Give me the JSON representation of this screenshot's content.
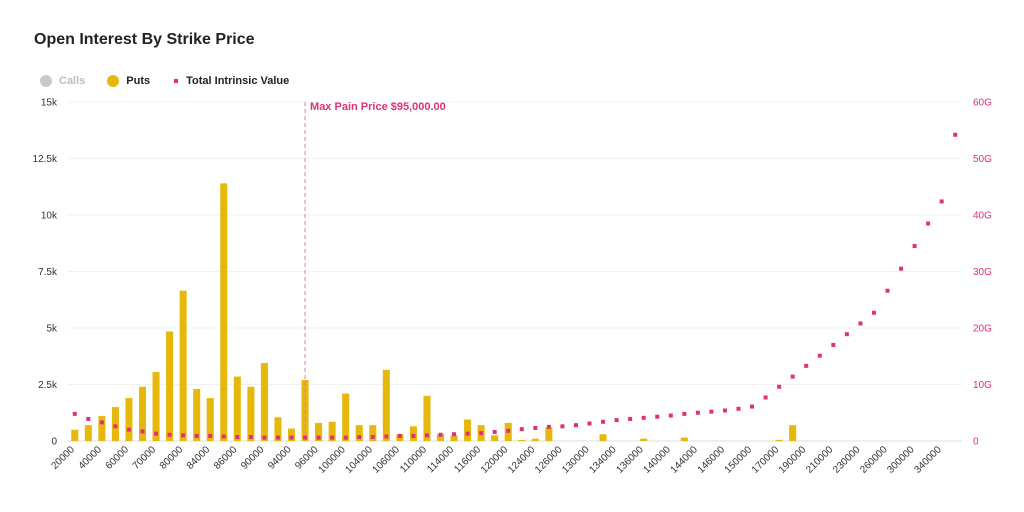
{
  "title": "Open Interest By Strike Price",
  "legend": {
    "calls": {
      "label": "Calls",
      "color": "#c9c9c9",
      "active": false
    },
    "puts": {
      "label": "Puts",
      "color": "#e5b80b",
      "active": true
    },
    "tiv": {
      "label": "Total Intrinsic Value",
      "color": "#e0307a",
      "active": true
    }
  },
  "max_pain": {
    "label": "Max Pain Price $95,000.00",
    "strike": "95000"
  },
  "chart_data": {
    "type": "bar",
    "categories": [
      "20000",
      "30000",
      "40000",
      "50000",
      "60000",
      "65000",
      "70000",
      "75000",
      "80000",
      "82000",
      "84000",
      "85000",
      "86000",
      "88000",
      "90000",
      "92000",
      "94000",
      "95000",
      "96000",
      "98000",
      "100000",
      "102000",
      "104000",
      "105000",
      "106000",
      "108000",
      "110000",
      "112000",
      "114000",
      "115000",
      "116000",
      "118000",
      "120000",
      "122000",
      "124000",
      "125000",
      "126000",
      "128000",
      "130000",
      "132000",
      "134000",
      "135000",
      "136000",
      "138000",
      "140000",
      "142000",
      "144000",
      "145000",
      "146000",
      "148000",
      "150000",
      "160000",
      "170000",
      "180000",
      "190000",
      "200000",
      "210000",
      "220000",
      "230000",
      "240000",
      "260000",
      "280000",
      "300000",
      "320000",
      "340000",
      "360000"
    ],
    "x_tick_labels": [
      "20000",
      "40000",
      "60000",
      "70000",
      "80000",
      "84000",
      "86000",
      "90000",
      "94000",
      "96000",
      "100000",
      "104000",
      "106000",
      "110000",
      "114000",
      "116000",
      "120000",
      "124000",
      "126000",
      "130000",
      "134000",
      "136000",
      "140000",
      "144000",
      "146000",
      "150000",
      "170000",
      "190000",
      "210000",
      "230000",
      "260000",
      "300000",
      "340000"
    ],
    "series": [
      {
        "name": "Calls",
        "axis": "left",
        "values": [
          0,
          0,
          0,
          0,
          0,
          0,
          0,
          0,
          0,
          0,
          0,
          0,
          0,
          0,
          0,
          0,
          0,
          0,
          0,
          0,
          0,
          0,
          0,
          0,
          0,
          0,
          0,
          0,
          0,
          0,
          0,
          0,
          0,
          0,
          0,
          0,
          0,
          0,
          0,
          0,
          0,
          0,
          0,
          0,
          0,
          0,
          0,
          0,
          0,
          0,
          0,
          0,
          0,
          0,
          0,
          0,
          0,
          0,
          0,
          0,
          0,
          0,
          0,
          0,
          0,
          0
        ]
      },
      {
        "name": "Puts",
        "axis": "left",
        "values": [
          500,
          700,
          1100,
          1500,
          1900,
          2400,
          3050,
          4850,
          6650,
          2300,
          1900,
          11400,
          2850,
          2400,
          3450,
          1050,
          550,
          2700,
          800,
          850,
          2100,
          700,
          700,
          3150,
          300,
          650,
          2000,
          300,
          250,
          950,
          700,
          250,
          800,
          50,
          100,
          600,
          0,
          0,
          0,
          300,
          0,
          0,
          100,
          0,
          0,
          150,
          0,
          0,
          0,
          0,
          0,
          0,
          50,
          700,
          0,
          0,
          0,
          0,
          0,
          0,
          0,
          0,
          0,
          0,
          0,
          0
        ]
      },
      {
        "name": "Total Intrinsic Value",
        "axis": "right",
        "values": [
          4.8,
          3.9,
          3.3,
          2.6,
          2.0,
          1.7,
          1.3,
          1.1,
          1.0,
          0.9,
          0.9,
          0.8,
          0.7,
          0.7,
          0.6,
          0.6,
          0.6,
          0.6,
          0.6,
          0.6,
          0.6,
          0.7,
          0.7,
          0.8,
          0.9,
          0.9,
          1.0,
          1.1,
          1.2,
          1.3,
          1.4,
          1.6,
          1.8,
          2.1,
          2.3,
          2.5,
          2.6,
          2.8,
          3.1,
          3.4,
          3.7,
          3.9,
          4.1,
          4.3,
          4.5,
          4.8,
          5.0,
          5.2,
          5.4,
          5.7,
          6.1,
          7.7,
          9.6,
          11.4,
          13.3,
          15.1,
          17.0,
          18.9,
          20.8,
          22.7,
          26.6,
          30.5,
          34.5,
          38.5,
          42.4,
          54.2
        ]
      }
    ],
    "ylim_left": [
      0,
      15000
    ],
    "ylim_right": [
      0,
      60
    ],
    "y_ticks_left": [
      "0",
      "2.5k",
      "5k",
      "7.5k",
      "10k",
      "12.5k",
      "15k"
    ],
    "y_ticks_right": [
      "0",
      "10G",
      "20G",
      "30G",
      "40G",
      "50G",
      "60G"
    ],
    "grid": true
  }
}
